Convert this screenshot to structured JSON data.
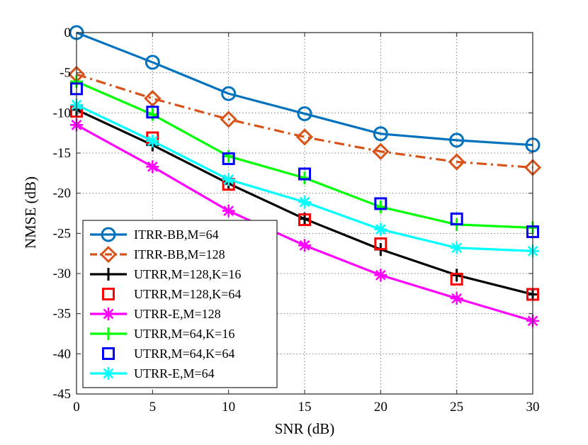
{
  "chart_data": {
    "type": "line",
    "title": "",
    "xlabel": "SNR (dB)",
    "ylabel": "NMSE (dB)",
    "xlim": [
      0,
      30
    ],
    "ylim": [
      -45,
      0
    ],
    "xticks": [
      0,
      5,
      10,
      15,
      20,
      25,
      30
    ],
    "yticks": [
      0,
      -5,
      -10,
      -15,
      -20,
      -25,
      -30,
      -35,
      -40,
      -45
    ],
    "xtick_labels": [
      "0",
      "5",
      "10",
      "15",
      "20",
      "25",
      "30"
    ],
    "ytick_labels": [
      "0",
      "-5",
      "-10",
      "-15",
      "-20",
      "-25",
      "-30",
      "-35",
      "-40",
      "-45"
    ],
    "grid": true,
    "legend_position": "bottom-left",
    "x": [
      0,
      5,
      10,
      15,
      20,
      25,
      30
    ],
    "series": [
      {
        "name": "ITRR-BB,M=64",
        "color": "#0072BD",
        "line": "solid",
        "marker": "circle",
        "values": [
          0,
          -3.7,
          -7.6,
          -10.1,
          -12.6,
          -13.4,
          -14.0
        ]
      },
      {
        "name": "ITRR-BB,M=128",
        "color": "#D95319",
        "line": "dashdot",
        "marker": "diamond",
        "values": [
          -5.2,
          -8.2,
          -10.8,
          -13.0,
          -14.8,
          -16.1,
          -16.8
        ]
      },
      {
        "name": "UTRR,M=128,K=16",
        "color": "#000000",
        "line": "solid",
        "marker": "plus",
        "values": [
          -9.6,
          -14.0,
          -18.8,
          -23.2,
          -27.0,
          -30.2,
          -32.6
        ]
      },
      {
        "name": "UTRR,M=128,K=64",
        "color": "#FF0000",
        "line": "none",
        "marker": "square",
        "values": [
          -9.8,
          -13.1,
          -18.9,
          -23.3,
          -26.3,
          -30.7,
          -32.6
        ]
      },
      {
        "name": "UTRR-E,M=128",
        "color": "#FF00FF",
        "line": "solid",
        "marker": "asterisk",
        "values": [
          -11.5,
          -16.7,
          -22.2,
          -26.5,
          -30.2,
          -33.1,
          -35.9
        ]
      },
      {
        "name": "UTRR,M=64,K=16",
        "color": "#00FF00",
        "line": "solid",
        "marker": "plus",
        "values": [
          -6.1,
          -10.2,
          -15.4,
          -18.1,
          -21.7,
          -23.9,
          -24.3
        ]
      },
      {
        "name": "UTRR,M=64,K=64",
        "color": "#0000FF",
        "line": "none",
        "marker": "square",
        "values": [
          -7.0,
          -9.9,
          -15.7,
          -17.6,
          -21.3,
          -23.2,
          -24.8
        ]
      },
      {
        "name": "UTRR-E,M=64",
        "color": "#00FFFF",
        "line": "solid",
        "marker": "asterisk",
        "values": [
          -9.0,
          -13.5,
          -18.3,
          -21.1,
          -24.5,
          -26.8,
          -27.2
        ]
      }
    ]
  }
}
